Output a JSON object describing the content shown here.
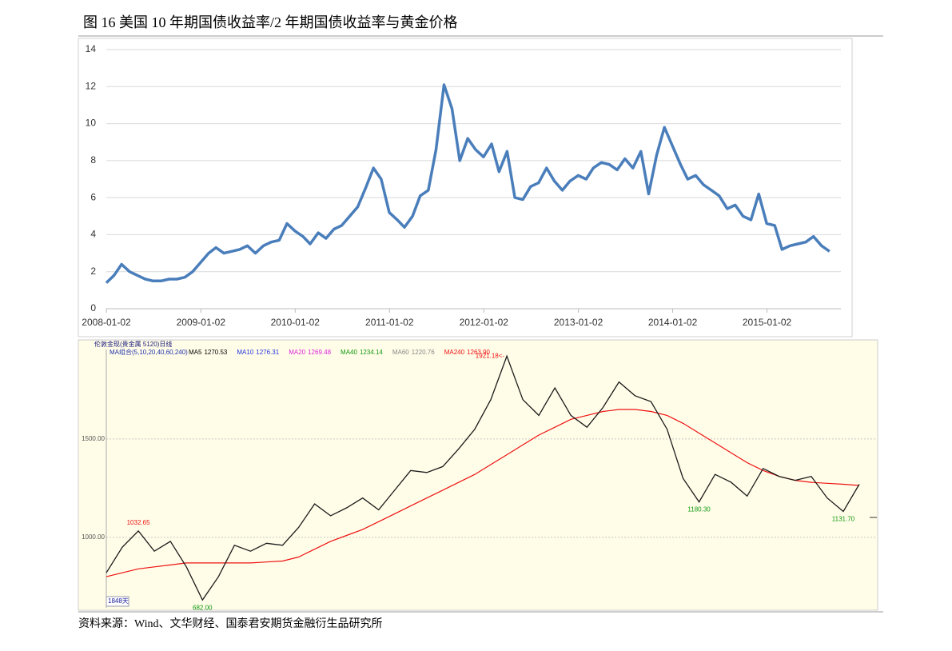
{
  "header": {
    "title": "图 16  美国 10 年期国债收益率/2 年期国债收益率与黄金价格"
  },
  "chart_data": [
    {
      "type": "line",
      "color": "#4a7ebb",
      "grid": true,
      "x": [
        "2008-01-02",
        "2008-02-01",
        "2008-03-01",
        "2008-04-01",
        "2008-05-01",
        "2008-06-01",
        "2008-07-01",
        "2008-08-01",
        "2008-09-01",
        "2008-10-01",
        "2008-11-01",
        "2008-12-01",
        "2009-01-01",
        "2009-02-01",
        "2009-03-01",
        "2009-04-01",
        "2009-05-01",
        "2009-06-01",
        "2009-07-01",
        "2009-08-01",
        "2009-09-01",
        "2009-10-01",
        "2009-11-01",
        "2009-12-01",
        "2010-01-01",
        "2010-02-01",
        "2010-03-01",
        "2010-04-01",
        "2010-05-01",
        "2010-06-01",
        "2010-07-01",
        "2010-08-01",
        "2010-09-01",
        "2010-10-01",
        "2010-11-01",
        "2010-12-01",
        "2011-01-01",
        "2011-02-01",
        "2011-03-01",
        "2011-04-01",
        "2011-05-01",
        "2011-06-01",
        "2011-07-01",
        "2011-08-01",
        "2011-09-01",
        "2011-10-01",
        "2011-11-01",
        "2011-12-01",
        "2012-01-01",
        "2012-02-01",
        "2012-03-01",
        "2012-04-01",
        "2012-05-01",
        "2012-06-01",
        "2012-07-01",
        "2012-08-01",
        "2012-09-01",
        "2012-10-01",
        "2012-11-01",
        "2012-12-01",
        "2013-01-01",
        "2013-02-01",
        "2013-03-01",
        "2013-04-01",
        "2013-05-01",
        "2013-06-01",
        "2013-07-01",
        "2013-08-01",
        "2013-09-01",
        "2013-10-01",
        "2013-11-01",
        "2013-12-01",
        "2014-01-01",
        "2014-02-01",
        "2014-03-01",
        "2014-04-01",
        "2014-05-01",
        "2014-06-01",
        "2014-07-01",
        "2014-08-01",
        "2014-09-01",
        "2014-10-01",
        "2014-11-01",
        "2014-12-01",
        "2015-01-01",
        "2015-02-01",
        "2015-03-01",
        "2015-04-01",
        "2015-05-01",
        "2015-06-01",
        "2015-07-01",
        "2015-08-01",
        "2015-09-01"
      ],
      "values": [
        1.4,
        1.8,
        2.4,
        2.0,
        1.8,
        1.6,
        1.5,
        1.5,
        1.6,
        1.6,
        1.7,
        2.0,
        2.5,
        3.0,
        3.3,
        3.0,
        3.1,
        3.2,
        3.4,
        3.0,
        3.4,
        3.6,
        3.7,
        4.6,
        4.2,
        3.9,
        3.5,
        4.1,
        3.8,
        4.3,
        4.5,
        5.0,
        5.5,
        6.5,
        7.6,
        7.0,
        5.2,
        4.8,
        4.4,
        5.0,
        6.1,
        6.4,
        8.6,
        12.1,
        10.8,
        8.0,
        9.2,
        8.6,
        8.2,
        8.9,
        7.4,
        8.5,
        6.0,
        5.9,
        6.6,
        6.8,
        7.6,
        6.9,
        6.4,
        6.9,
        7.2,
        7.0,
        7.6,
        7.9,
        7.8,
        7.5,
        8.1,
        7.6,
        8.5,
        6.2,
        8.3,
        9.8,
        8.8,
        7.8,
        7.0,
        7.2,
        6.7,
        6.4,
        6.1,
        5.4,
        5.6,
        5.0,
        4.8,
        6.2,
        4.6,
        4.5,
        3.2,
        3.4,
        3.5,
        3.6,
        3.9,
        3.4,
        3.1
      ],
      "xlim": [
        "2008-01-02",
        "2015-10-15"
      ],
      "xticks": [
        "2008-01-02",
        "2009-01-02",
        "2010-01-02",
        "2011-01-02",
        "2012-01-02",
        "2013-01-02",
        "2014-01-02",
        "2015-01-02"
      ],
      "ylim": [
        0,
        14
      ],
      "yticks": [
        0,
        2,
        4,
        6,
        8,
        10,
        12,
        14
      ]
    },
    {
      "type": "price",
      "title": "伦敦金现(贵金属 5120)日线",
      "color": "#1a1a1a",
      "grid": true,
      "ma_group": "MA组合(5,10,20,40,60,240)",
      "ma_legend": [
        {
          "name": "MA5",
          "value": "1270.53",
          "color": "#000000"
        },
        {
          "name": "MA10",
          "value": "1276.31",
          "color": "#2233dd"
        },
        {
          "name": "MA20",
          "value": "1269.48",
          "color": "#dd22dd"
        },
        {
          "name": "MA40",
          "value": "1234.14",
          "color": "#119911"
        },
        {
          "name": "MA60",
          "value": "1220.76",
          "color": "#888888"
        },
        {
          "name": "MA240",
          "value": "1263.90",
          "color": "#ee1111"
        }
      ],
      "values": [
        820,
        950,
        1032.65,
        930,
        980,
        850,
        682,
        800,
        960,
        930,
        970,
        960,
        1050,
        1170,
        1110,
        1150,
        1200,
        1140,
        1240,
        1340,
        1330,
        1360,
        1450,
        1550,
        1700,
        1921.18,
        1700,
        1620,
        1760,
        1620,
        1560,
        1660,
        1790,
        1720,
        1690,
        1550,
        1300,
        1180.3,
        1320,
        1280,
        1210,
        1350,
        1310,
        1290,
        1310,
        1200,
        1131.7,
        1270
      ],
      "ma240_values": [
        800,
        820,
        840,
        850,
        860,
        870,
        870,
        870,
        870,
        870,
        875,
        880,
        900,
        940,
        980,
        1010,
        1040,
        1080,
        1120,
        1160,
        1200,
        1240,
        1280,
        1320,
        1370,
        1420,
        1470,
        1520,
        1560,
        1600,
        1620,
        1640,
        1650,
        1650,
        1640,
        1620,
        1580,
        1530,
        1480,
        1430,
        1380,
        1340,
        1310,
        1290,
        1280,
        1275,
        1270,
        1263.9
      ],
      "ma240_color": "#ee1111",
      "ylim": [
        642,
        1955
      ],
      "yticks": [
        {
          "value": 1000,
          "label": "1000.00"
        },
        {
          "value": 1500,
          "label": "1500.00"
        }
      ],
      "annotations": [
        {
          "value": 1032.65,
          "label": "1032.65",
          "color": "#ee1111"
        },
        {
          "value": 1921.18,
          "label": "1921.18<-",
          "color": "#ee1111"
        },
        {
          "value": 682,
          "label": "682.00",
          "color": "#119911"
        },
        {
          "value": 1180.3,
          "label": "1180.30",
          "color": "#119911"
        },
        {
          "value": 1131.7,
          "label": "1131.70",
          "color": "#119911"
        }
      ],
      "period_label": "1848天"
    }
  ],
  "footer": {
    "source": "资料来源：Wind、文华财经、国泰君安期货金融衍生品研究所"
  }
}
